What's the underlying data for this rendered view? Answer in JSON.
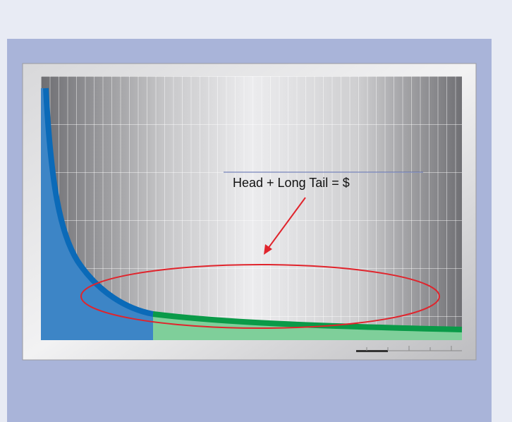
{
  "annotation": {
    "label": "Head + Long Tail = $"
  }
}
